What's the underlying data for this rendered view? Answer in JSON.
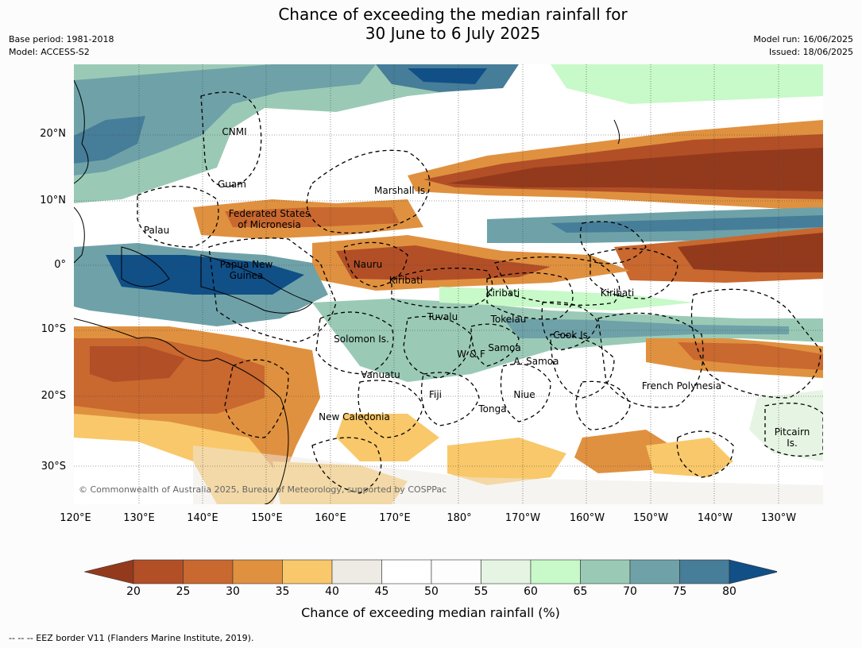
{
  "title_line1": "Chance of exceeding the median rainfall for",
  "title_line2": "30 June to 6 July 2025",
  "meta_left": [
    "Base period: 1981-2018",
    "Model: ACCESS-S2"
  ],
  "meta_right": [
    "Model run: 16/06/2025",
    "Issued: 18/06/2025"
  ],
  "map": {
    "lat_labels": [
      "20°N",
      "10°N",
      "0°",
      "10°S",
      "20°S",
      "30°S"
    ],
    "lon_labels": [
      "120°E",
      "130°E",
      "140°E",
      "150°E",
      "160°E",
      "170°E",
      "180°",
      "170°W",
      "160°W",
      "150°W",
      "140°W",
      "130°W"
    ],
    "places": [
      {
        "name": "CNMI"
      },
      {
        "name": "Guam"
      },
      {
        "name": "Marshall Is."
      },
      {
        "name": "Federated States\nof Micronesia"
      },
      {
        "name": "Palau"
      },
      {
        "name": "Papua New\nGuinea"
      },
      {
        "name": "Nauru"
      },
      {
        "name": "Kiribati"
      },
      {
        "name": "Kiribati"
      },
      {
        "name": "Kiribati"
      },
      {
        "name": "Tuvalu"
      },
      {
        "name": "Tokelau"
      },
      {
        "name": "Cook Is."
      },
      {
        "name": "Solomon Is."
      },
      {
        "name": "Samoa"
      },
      {
        "name": "W & F"
      },
      {
        "name": "A. Samoa"
      },
      {
        "name": "Vanuatu"
      },
      {
        "name": "Fiji"
      },
      {
        "name": "Niue"
      },
      {
        "name": "French Polynesia"
      },
      {
        "name": "Tonga"
      },
      {
        "name": "New Caledonia"
      },
      {
        "name": "Pitcairn\nIs."
      }
    ],
    "copyright": "© Commonwealth of Australia 2025, Bureau of Meteorology, supported by COSPPac"
  },
  "legend": {
    "ticks": [
      "20",
      "25",
      "30",
      "35",
      "40",
      "45",
      "50",
      "55",
      "60",
      "65",
      "70",
      "75",
      "80"
    ],
    "colors": [
      "#933a1d",
      "#b24f27",
      "#c9682f",
      "#e0913f",
      "#f9c86a",
      "#eeeae4",
      "#ffffff",
      "#fdfdfd",
      "#e6f5e3",
      "#c8f9c8",
      "#9acab6",
      "#6ea2a8",
      "#467d98",
      "#114f87"
    ],
    "title": "Chance of exceeding median rainfall (%)"
  },
  "footnote": "--  --  -- EEZ border V11 (Flanders Marine Institute, 2019)."
}
